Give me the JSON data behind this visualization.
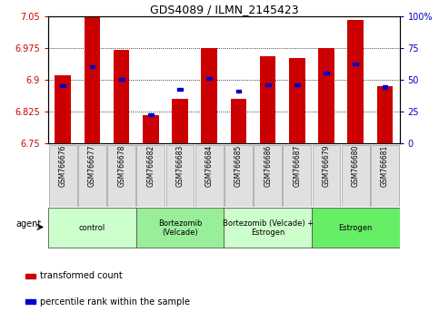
{
  "title": "GDS4089 / ILMN_2145423",
  "samples": [
    "GSM766676",
    "GSM766677",
    "GSM766678",
    "GSM766682",
    "GSM766683",
    "GSM766684",
    "GSM766685",
    "GSM766686",
    "GSM766687",
    "GSM766679",
    "GSM766680",
    "GSM766681"
  ],
  "transformed_counts": [
    6.91,
    7.05,
    6.97,
    6.815,
    6.855,
    6.975,
    6.855,
    6.955,
    6.95,
    6.975,
    7.04,
    6.885
  ],
  "percentile_ranks": [
    45,
    60,
    50,
    22,
    42,
    51,
    41,
    46,
    46,
    55,
    62,
    44
  ],
  "ylim_left": [
    6.75,
    7.05
  ],
  "ylim_right": [
    0,
    100
  ],
  "yticks_left": [
    6.75,
    6.825,
    6.9,
    6.975,
    7.05
  ],
  "yticks_right": [
    0,
    25,
    50,
    75,
    100
  ],
  "bar_color": "#cc0000",
  "percentile_color": "#0000cc",
  "agent_groups": [
    {
      "label": "control",
      "start": 0,
      "end": 3,
      "color": "#ccffcc"
    },
    {
      "label": "Bortezomib\n(Velcade)",
      "start": 3,
      "end": 6,
      "color": "#99ee99"
    },
    {
      "label": "Bortezomib (Velcade) +\nEstrogen",
      "start": 6,
      "end": 9,
      "color": "#ccffcc"
    },
    {
      "label": "Estrogen",
      "start": 9,
      "end": 12,
      "color": "#66ee66"
    }
  ],
  "legend_items": [
    {
      "color": "#cc0000",
      "label": "transformed count"
    },
    {
      "color": "#0000cc",
      "label": "percentile rank within the sample"
    }
  ],
  "bar_width": 0.55,
  "base_value": 6.75
}
